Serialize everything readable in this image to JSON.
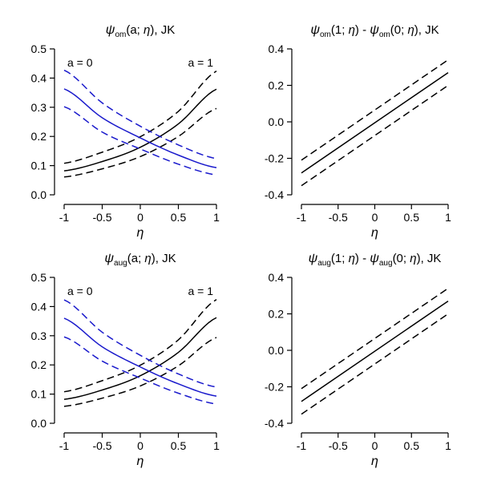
{
  "chart_data": [
    {
      "type": "line",
      "title_parts": {
        "sym": "ψ",
        "sub": "om",
        "rest": "(a; ",
        "eta": "η",
        "tail": "), JK"
      },
      "xlabel": "η",
      "xlim": [
        -1,
        1
      ],
      "ylim": [
        0.0,
        0.5
      ],
      "xticks": [
        "-1",
        "-0.5",
        "0",
        "0.5",
        "1"
      ],
      "yticks": [
        "0.0",
        "0.1",
        "0.2",
        "0.3",
        "0.4",
        "0.5"
      ],
      "annotations": [
        {
          "text": "a = 0",
          "pos": "top-left"
        },
        {
          "text": "a = 1",
          "pos": "top-right"
        }
      ],
      "x": [
        -1,
        -0.5,
        0,
        0.5,
        1
      ],
      "series": [
        {
          "name": "a = 1 estimate",
          "color": "#000000",
          "dash": "solid",
          "values": [
            0.082,
            0.114,
            0.163,
            0.243,
            0.362
          ]
        },
        {
          "name": "a = 1 upper",
          "color": "#000000",
          "dash": "dashed",
          "values": [
            0.108,
            0.146,
            0.199,
            0.286,
            0.424
          ]
        },
        {
          "name": "a = 1 lower",
          "color": "#000000",
          "dash": "dashed",
          "values": [
            0.061,
            0.089,
            0.131,
            0.2,
            0.296
          ]
        },
        {
          "name": "a = 0 estimate",
          "color": "#1a1acc",
          "dash": "solid",
          "values": [
            0.363,
            0.264,
            0.195,
            0.136,
            0.093
          ]
        },
        {
          "name": "a = 0 upper",
          "color": "#1a1acc",
          "dash": "dashed",
          "values": [
            0.427,
            0.315,
            0.235,
            0.171,
            0.124
          ]
        },
        {
          "name": "a = 0 lower",
          "color": "#1a1acc",
          "dash": "dashed",
          "values": [
            0.302,
            0.215,
            0.157,
            0.105,
            0.068
          ]
        }
      ]
    },
    {
      "type": "line",
      "title_parts": {
        "sym": "ψ",
        "sub": "om",
        "rest": "(1; ",
        "eta": "η",
        "mid": ") - ",
        "sym2": "ψ",
        "sub2": "om",
        "rest2": "(0; ",
        "eta2": "η",
        "tail": "), JK"
      },
      "xlabel": "η",
      "xlim": [
        -1,
        1
      ],
      "ylim": [
        -0.4,
        0.4
      ],
      "xticks": [
        "-1",
        "-0.5",
        "0",
        "0.5",
        "1"
      ],
      "yticks": [
        "-0.4",
        "-0.2",
        "0.0",
        "0.2",
        "0.4"
      ],
      "annotations": [],
      "x": [
        -1,
        1
      ],
      "series": [
        {
          "name": "difference estimate",
          "color": "#000000",
          "dash": "solid",
          "values": [
            -0.28,
            0.27
          ]
        },
        {
          "name": "difference upper",
          "color": "#000000",
          "dash": "dashed",
          "values": [
            -0.21,
            0.34
          ]
        },
        {
          "name": "difference lower",
          "color": "#000000",
          "dash": "dashed",
          "values": [
            -0.35,
            0.2
          ]
        }
      ]
    },
    {
      "type": "line",
      "title_parts": {
        "sym": "ψ",
        "sub": "aug",
        "rest": "(a; ",
        "eta": "η",
        "tail": "), JK"
      },
      "xlabel": "η",
      "xlim": [
        -1,
        1
      ],
      "ylim": [
        0.0,
        0.5
      ],
      "xticks": [
        "-1",
        "-0.5",
        "0",
        "0.5",
        "1"
      ],
      "yticks": [
        "0.0",
        "0.1",
        "0.2",
        "0.3",
        "0.4",
        "0.5"
      ],
      "annotations": [
        {
          "text": "a = 0",
          "pos": "top-left"
        },
        {
          "text": "a = 1",
          "pos": "top-right"
        }
      ],
      "x": [
        -1,
        -0.5,
        0,
        0.5,
        1
      ],
      "series": [
        {
          "name": "a = 1 estimate",
          "color": "#000000",
          "dash": "solid",
          "values": [
            0.082,
            0.114,
            0.163,
            0.243,
            0.362
          ]
        },
        {
          "name": "a = 1 upper",
          "color": "#000000",
          "dash": "dashed",
          "values": [
            0.108,
            0.146,
            0.199,
            0.286,
            0.424
          ]
        },
        {
          "name": "a = 1 lower",
          "color": "#000000",
          "dash": "dashed",
          "values": [
            0.058,
            0.086,
            0.128,
            0.197,
            0.294
          ]
        },
        {
          "name": "a = 0 estimate",
          "color": "#1a1acc",
          "dash": "solid",
          "values": [
            0.36,
            0.262,
            0.193,
            0.135,
            0.093
          ]
        },
        {
          "name": "a = 0 upper",
          "color": "#1a1acc",
          "dash": "dashed",
          "values": [
            0.423,
            0.312,
            0.233,
            0.169,
            0.124
          ]
        },
        {
          "name": "a = 0 lower",
          "color": "#1a1acc",
          "dash": "dashed",
          "values": [
            0.296,
            0.213,
            0.155,
            0.103,
            0.066
          ]
        }
      ]
    },
    {
      "type": "line",
      "title_parts": {
        "sym": "ψ",
        "sub": "aug",
        "rest": "(1; ",
        "eta": "η",
        "mid": ") - ",
        "sym2": "ψ",
        "sub2": "aug",
        "rest2": "(0; ",
        "eta2": "η",
        "tail": "), JK"
      },
      "xlabel": "η",
      "xlim": [
        -1,
        1
      ],
      "ylim": [
        -0.4,
        0.4
      ],
      "xticks": [
        "-1",
        "-0.5",
        "0",
        "0.5",
        "1"
      ],
      "yticks": [
        "-0.4",
        "-0.2",
        "0.0",
        "0.2",
        "0.4"
      ],
      "annotations": [],
      "x": [
        -1,
        1
      ],
      "series": [
        {
          "name": "difference estimate",
          "color": "#000000",
          "dash": "solid",
          "values": [
            -0.28,
            0.27
          ]
        },
        {
          "name": "difference upper",
          "color": "#000000",
          "dash": "dashed",
          "values": [
            -0.21,
            0.34
          ]
        },
        {
          "name": "difference lower",
          "color": "#000000",
          "dash": "dashed",
          "values": [
            -0.35,
            0.2
          ]
        }
      ]
    }
  ]
}
